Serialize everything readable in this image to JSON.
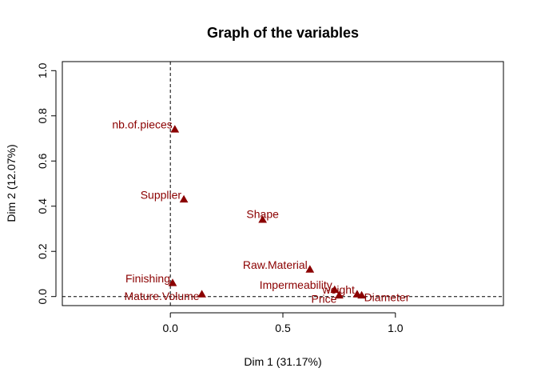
{
  "chart_data": {
    "type": "scatter",
    "title": "Graph of the variables",
    "xlabel": "Dim 1 (31.17%)",
    "ylabel": "Dim 2 (12.07%)",
    "xlim": [
      -0.48,
      1.48
    ],
    "ylim": [
      -0.04,
      1.04
    ],
    "x_ticks": [
      "0.0",
      "0.5",
      "1.0"
    ],
    "y_ticks": [
      "0.0",
      "0.2",
      "0.4",
      "0.6",
      "0.8",
      "1.0"
    ],
    "x_tick_values": [
      0,
      0.5,
      1
    ],
    "y_tick_values": [
      0,
      0.2,
      0.4,
      0.6,
      0.8,
      1
    ],
    "grid": false,
    "reference_lines": {
      "x": 0,
      "y": 0
    },
    "marker_color": "#8B0000",
    "points": [
      {
        "label": "nb.of.pieces",
        "x": 0.02,
        "y": 0.74,
        "label_side": "left"
      },
      {
        "label": "Supplier",
        "x": 0.06,
        "y": 0.43,
        "label_side": "left"
      },
      {
        "label": "Shape",
        "x": 0.41,
        "y": 0.34,
        "label_side": "center"
      },
      {
        "label": "Raw.Material",
        "x": 0.62,
        "y": 0.12,
        "label_side": "left"
      },
      {
        "label": "Finishing",
        "x": 0.01,
        "y": 0.06,
        "label_side": "left"
      },
      {
        "label": "Mature.Volume",
        "x": 0.14,
        "y": 0.01,
        "label_side": "left"
      },
      {
        "label": "Impermeability",
        "x": 0.73,
        "y": 0.03,
        "label_side": "left"
      },
      {
        "label": "weight",
        "x": 0.83,
        "y": 0.01,
        "label_side": "left"
      },
      {
        "label": "Price",
        "x": 0.75,
        "y": 0.005,
        "label_side": "left"
      },
      {
        "label": "Diameter",
        "x": 0.85,
        "y": 0.005,
        "label_side": "right"
      }
    ]
  }
}
